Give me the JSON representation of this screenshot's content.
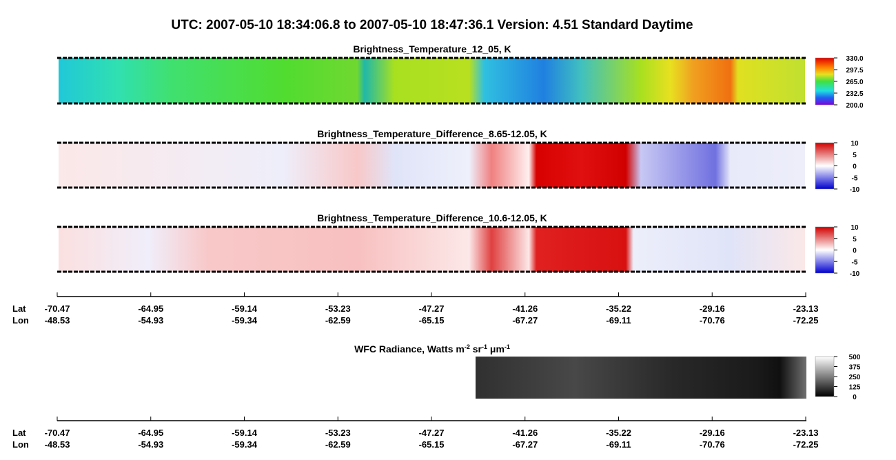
{
  "title": "UTC:  2007-05-10   18:34:06.8  to  2007-05-10   18:47:36.1    Version: 4.51  Standard Daytime",
  "panels": [
    {
      "title": "Brightness_Temperature_12_05, K",
      "colorbar_ticks": [
        "330.0",
        "297.5",
        "265.0",
        "232.5",
        "200.0"
      ]
    },
    {
      "title": "Brightness_Temperature_Difference_8.65-12.05, K",
      "colorbar_ticks": [
        "10",
        "5",
        "0",
        "-5",
        "-10"
      ]
    },
    {
      "title": "Brightness_Temperature_Difference_10.6-12.05, K",
      "colorbar_ticks": [
        "10",
        "5",
        "0",
        "-5",
        "-10"
      ]
    }
  ],
  "wfc": {
    "title_parts": [
      "WFC Radiance, Watts m",
      "-2",
      " sr",
      "-1",
      " μm",
      "-1"
    ],
    "colorbar_ticks": [
      "500",
      "375",
      "250",
      "125",
      "0"
    ]
  },
  "axes": [
    {
      "lat_label": "Lat",
      "lon_label": "Lon",
      "lat": [
        "-70.47",
        "-64.95",
        "-59.14",
        "-53.23",
        "-47.27",
        "-41.26",
        "-35.22",
        "-29.16",
        "-23.13"
      ],
      "lon": [
        "-48.53",
        "-54.93",
        "-59.34",
        "-62.59",
        "-65.15",
        "-67.27",
        "-69.11",
        "-70.76",
        "-72.25"
      ]
    },
    {
      "lat_label": "Lat",
      "lon_label": "Lon",
      "lat": [
        "-70.47",
        "-64.95",
        "-59.14",
        "-53.23",
        "-47.27",
        "-41.26",
        "-35.22",
        "-29.16",
        "-23.13"
      ],
      "lon": [
        "-48.53",
        "-54.93",
        "-59.34",
        "-62.59",
        "-65.15",
        "-67.27",
        "-69.11",
        "-70.76",
        "-72.25"
      ]
    }
  ]
}
